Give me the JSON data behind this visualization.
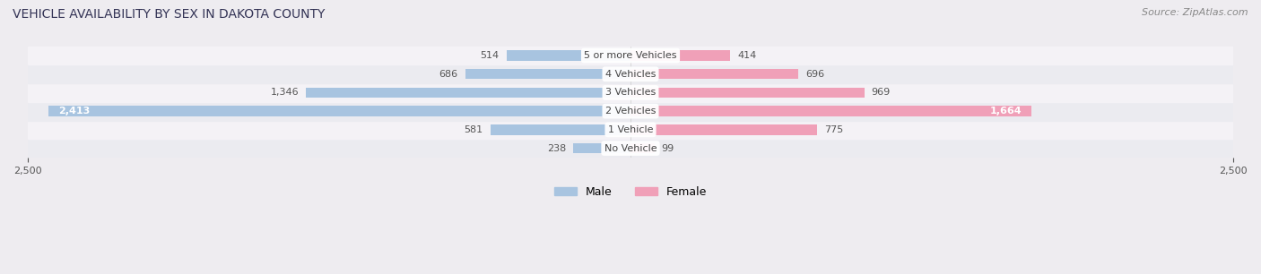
{
  "title": "VEHICLE AVAILABILITY BY SEX IN DAKOTA COUNTY",
  "source": "Source: ZipAtlas.com",
  "categories": [
    "No Vehicle",
    "1 Vehicle",
    "2 Vehicles",
    "3 Vehicles",
    "4 Vehicles",
    "5 or more Vehicles"
  ],
  "male_values": [
    238,
    581,
    2413,
    1346,
    686,
    514
  ],
  "female_values": [
    99,
    775,
    1664,
    969,
    696,
    414
  ],
  "male_color": "#a8c4e0",
  "female_color": "#f0a0b8",
  "male_label_color_default": "#555555",
  "male_label_color_inside": "#ffffff",
  "female_label_color_default": "#555555",
  "female_label_color_inside": "#ffffff",
  "bar_height": 0.55,
  "xlim": 2500,
  "background_color": "#eeecf0",
  "title_fontsize": 10,
  "source_fontsize": 8,
  "label_fontsize": 8,
  "axis_label_fontsize": 8,
  "legend_fontsize": 9
}
